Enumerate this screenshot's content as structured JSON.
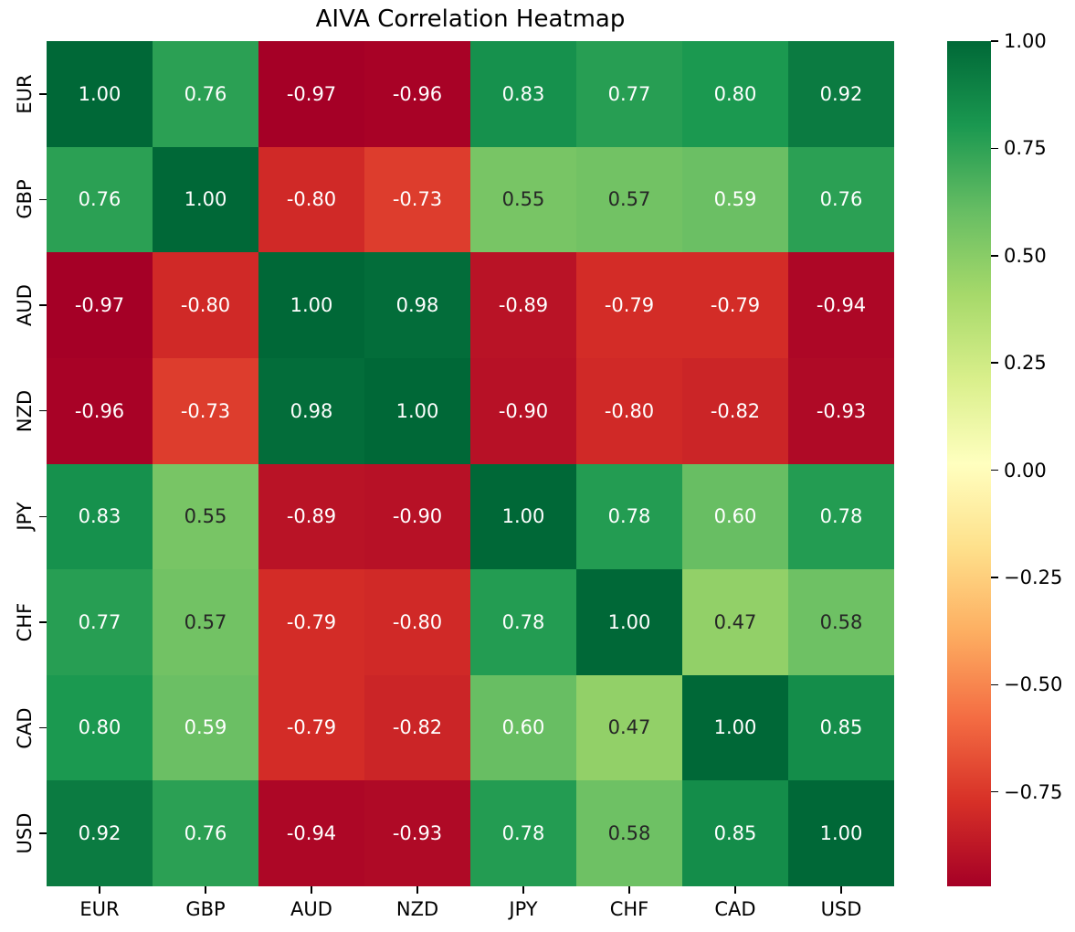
{
  "title": "AIVA Correlation Heatmap",
  "chart_data": {
    "type": "heatmap",
    "categories": [
      "EUR",
      "GBP",
      "AUD",
      "NZD",
      "JPY",
      "CHF",
      "CAD",
      "USD"
    ],
    "matrix": [
      [
        1.0,
        0.76,
        -0.97,
        -0.96,
        0.83,
        0.77,
        0.8,
        0.92
      ],
      [
        0.76,
        1.0,
        -0.8,
        -0.73,
        0.55,
        0.57,
        0.59,
        0.76
      ],
      [
        -0.97,
        -0.8,
        1.0,
        0.98,
        -0.89,
        -0.79,
        -0.79,
        -0.94
      ],
      [
        -0.96,
        -0.73,
        0.98,
        1.0,
        -0.9,
        -0.8,
        -0.82,
        -0.93
      ],
      [
        0.83,
        0.55,
        -0.89,
        -0.9,
        1.0,
        0.78,
        0.6,
        0.78
      ],
      [
        0.77,
        0.57,
        -0.79,
        -0.8,
        0.78,
        1.0,
        0.47,
        0.58
      ],
      [
        0.8,
        0.59,
        -0.79,
        -0.82,
        0.6,
        0.47,
        1.0,
        0.85
      ],
      [
        0.92,
        0.76,
        -0.94,
        -0.93,
        0.78,
        0.58,
        0.85,
        1.0
      ]
    ],
    "value_decimals": 2,
    "colormap": "RdYlGn",
    "vmin": -0.97,
    "vmax": 1.0,
    "grid": false,
    "legend_position": "right-colorbar",
    "colorbar_ticks": [
      {
        "value": 1.0,
        "label": "1.00"
      },
      {
        "value": 0.75,
        "label": "0.75"
      },
      {
        "value": 0.5,
        "label": "0.50"
      },
      {
        "value": 0.25,
        "label": "0.25"
      },
      {
        "value": 0.0,
        "label": "0.00"
      },
      {
        "value": -0.25,
        "label": "−0.25"
      },
      {
        "value": -0.5,
        "label": "−0.50"
      },
      {
        "value": -0.75,
        "label": "−0.75"
      }
    ],
    "cmap_stops": [
      "#a50026",
      "#d73027",
      "#f46d43",
      "#fdae61",
      "#fee08b",
      "#ffffbf",
      "#d9ef8b",
      "#a6d96a",
      "#66bd63",
      "#1a9850",
      "#006837"
    ],
    "annotation_colors": {
      "dark": "#262626",
      "light": "#ffffff"
    },
    "background_color": "#ffffff"
  }
}
